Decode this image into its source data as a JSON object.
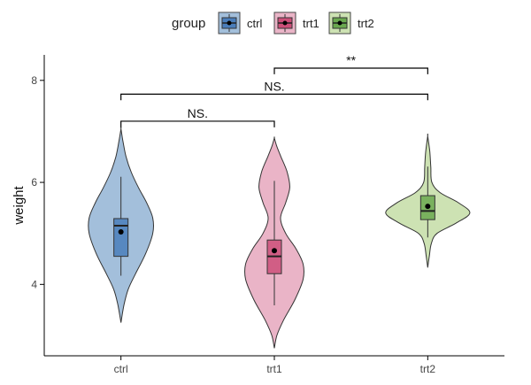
{
  "chart_data": {
    "type": "violin",
    "title": "",
    "xlabel": "",
    "ylabel": "weight",
    "ylim": [
      2.6,
      8.5
    ],
    "yticks": [
      4,
      6,
      8
    ],
    "legend": {
      "title": "group",
      "position": "top"
    },
    "grid": false,
    "categories": [
      "ctrl",
      "trt1",
      "trt2"
    ],
    "series": [
      {
        "name": "ctrl",
        "color": "#4a7ebb",
        "fill": "#a3bfdb",
        "range": [
          3.25,
          7.05
        ],
        "box": {
          "whisker_low": 4.17,
          "q1": 4.55,
          "median": 5.15,
          "q3": 5.29,
          "whisker_high": 6.11
        },
        "mean": 5.03,
        "density": [
          [
            3.25,
            0.0
          ],
          [
            3.6,
            0.06
          ],
          [
            3.9,
            0.14
          ],
          [
            4.2,
            0.28
          ],
          [
            4.6,
            0.48
          ],
          [
            5.0,
            0.62
          ],
          [
            5.3,
            0.62
          ],
          [
            5.6,
            0.5
          ],
          [
            5.9,
            0.34
          ],
          [
            6.2,
            0.2
          ],
          [
            6.5,
            0.1
          ],
          [
            6.8,
            0.04
          ],
          [
            7.05,
            0.0
          ]
        ]
      },
      {
        "name": "trt1",
        "color": "#cc4f79",
        "fill": "#eab4c7",
        "range": [
          2.75,
          6.87
        ],
        "box": {
          "whisker_low": 3.59,
          "q1": 4.21,
          "median": 4.55,
          "q3": 4.87,
          "whisker_high": 6.03
        },
        "mean": 4.66,
        "density": [
          [
            2.75,
            0.0
          ],
          [
            3.0,
            0.05
          ],
          [
            3.3,
            0.18
          ],
          [
            3.7,
            0.4
          ],
          [
            4.1,
            0.56
          ],
          [
            4.4,
            0.56
          ],
          [
            4.7,
            0.42
          ],
          [
            5.0,
            0.22
          ],
          [
            5.3,
            0.12
          ],
          [
            5.6,
            0.22
          ],
          [
            5.9,
            0.3
          ],
          [
            6.2,
            0.25
          ],
          [
            6.5,
            0.13
          ],
          [
            6.7,
            0.05
          ],
          [
            6.87,
            0.0
          ]
        ]
      },
      {
        "name": "trt2",
        "color": "#6aa84f",
        "fill": "#cde2b3",
        "range": [
          4.33,
          6.91
        ],
        "box": {
          "whisker_low": 4.92,
          "q1": 5.27,
          "median": 5.44,
          "q3": 5.74,
          "whisker_high": 6.31
        },
        "mean": 5.53,
        "density": [
          [
            4.33,
            0.0
          ],
          [
            4.55,
            0.03
          ],
          [
            4.8,
            0.07
          ],
          [
            5.0,
            0.18
          ],
          [
            5.2,
            0.55
          ],
          [
            5.4,
            0.82
          ],
          [
            5.6,
            0.6
          ],
          [
            5.8,
            0.24
          ],
          [
            6.0,
            0.08
          ],
          [
            6.3,
            0.06
          ],
          [
            6.6,
            0.04
          ],
          [
            6.91,
            0.0
          ]
        ]
      }
    ],
    "comparisons": [
      {
        "from": "ctrl",
        "to": "trt1",
        "label": "NS.",
        "y": 7.2,
        "drop": 0.12
      },
      {
        "from": "ctrl",
        "to": "trt2",
        "label": "NS.",
        "y": 7.73,
        "drop": 0.12
      },
      {
        "from": "trt1",
        "to": "trt2",
        "label": "**",
        "y": 8.24,
        "drop": 0.12
      }
    ]
  }
}
